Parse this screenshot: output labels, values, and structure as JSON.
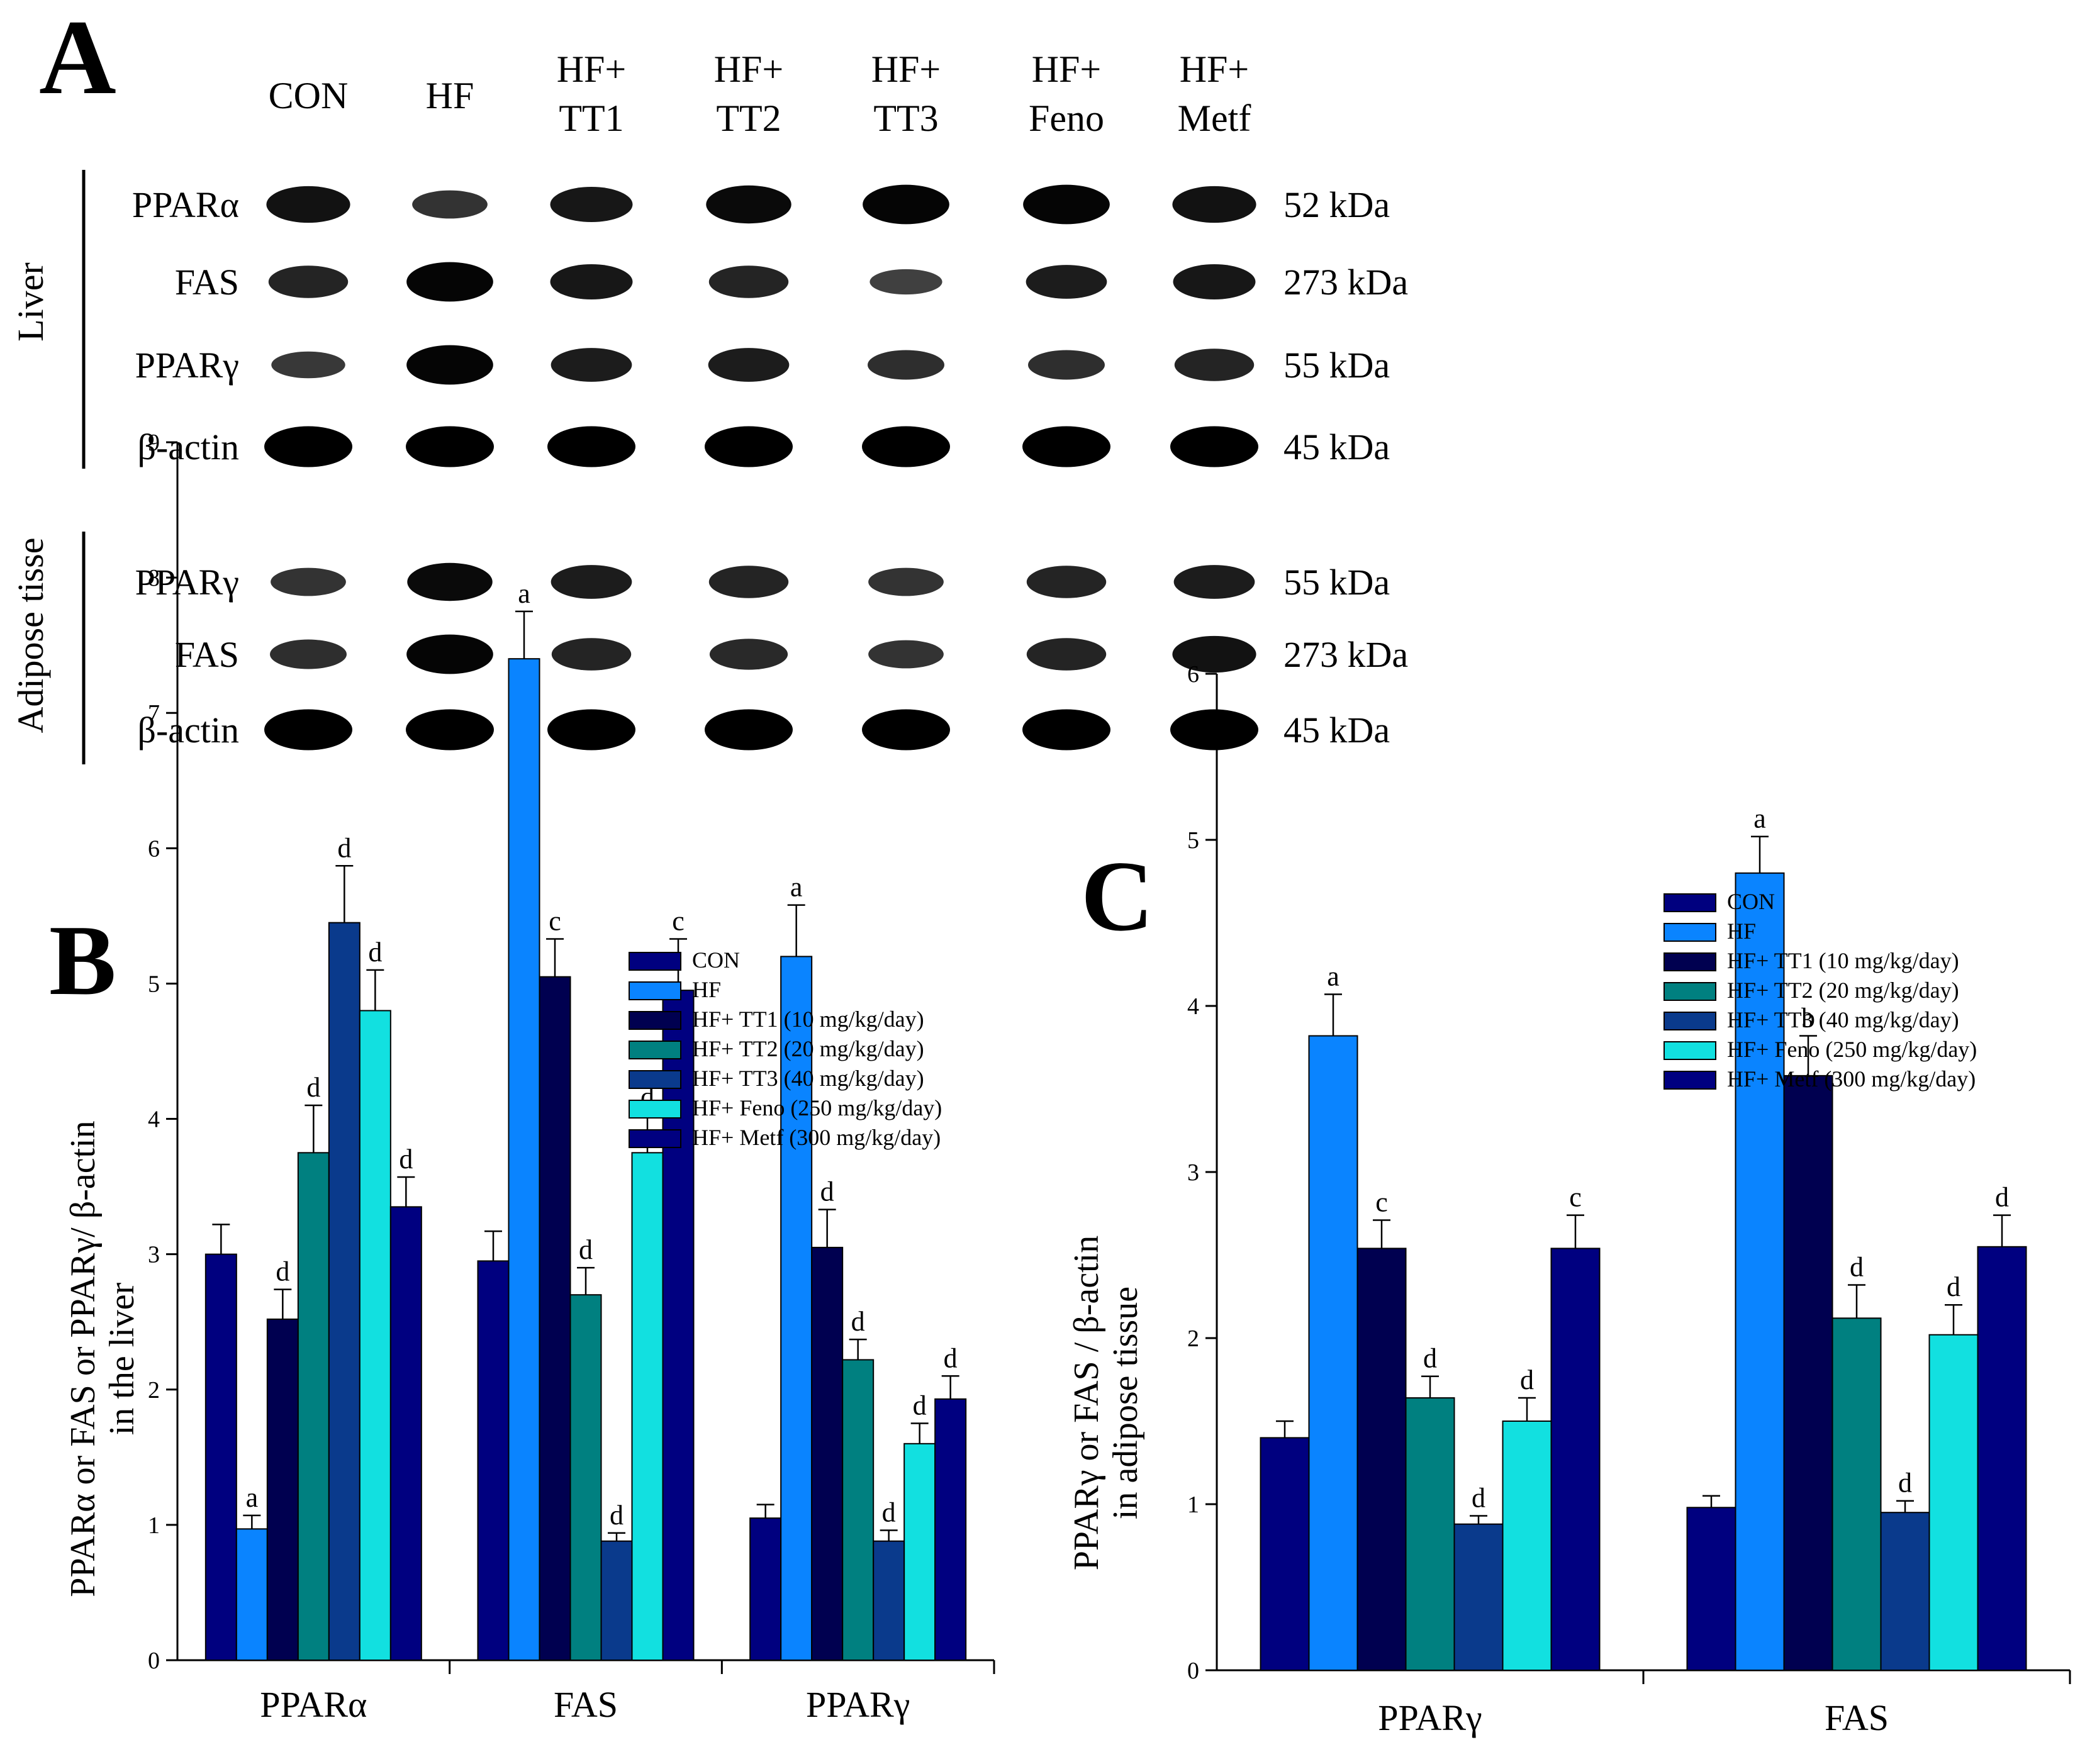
{
  "panel_a": {
    "letter": "A",
    "lanes": [
      [
        "CON"
      ],
      [
        "HF"
      ],
      [
        "HF+",
        "TT1"
      ],
      [
        "HF+",
        "TT2"
      ],
      [
        "HF+",
        "TT3"
      ],
      [
        "HF+",
        "Feno"
      ],
      [
        "HF+",
        "Metf"
      ]
    ],
    "groups": [
      {
        "tissue": "Liver",
        "rows": [
          {
            "protein": "PPARα",
            "size": "52 kDa",
            "band_intensity": [
              0.85,
              0.55,
              0.8,
              0.9,
              0.95,
              0.95,
              0.85
            ]
          },
          {
            "protein": "FAS",
            "size": "273 kDa",
            "band_intensity": [
              0.7,
              0.95,
              0.8,
              0.7,
              0.45,
              0.75,
              0.8
            ]
          },
          {
            "protein": "PPARγ",
            "size": "55 kDa",
            "band_intensity": [
              0.5,
              0.95,
              0.75,
              0.75,
              0.6,
              0.6,
              0.7
            ]
          },
          {
            "protein": "β-actin",
            "size": "45 kDa",
            "band_intensity": [
              1,
              1,
              1,
              1,
              1,
              1,
              1
            ]
          }
        ]
      },
      {
        "tissue": "Adipose tisse",
        "rows": [
          {
            "protein": "PPARγ",
            "size": "55 kDa",
            "band_intensity": [
              0.55,
              0.9,
              0.75,
              0.7,
              0.55,
              0.7,
              0.75
            ]
          },
          {
            "protein": "FAS",
            "size": "273 kDa",
            "band_intensity": [
              0.6,
              0.95,
              0.7,
              0.65,
              0.55,
              0.7,
              0.85
            ]
          },
          {
            "protein": "β-actin",
            "size": "45 kDa",
            "band_intensity": [
              1,
              1,
              1,
              1,
              1,
              1,
              1
            ]
          }
        ]
      }
    ]
  },
  "chart_data": [
    {
      "panel": "B",
      "type": "bar",
      "title": "",
      "xlabel": "",
      "ylabel": [
        "PPARα  or FAS or PPARγ/ β-actin",
        "in the liver"
      ],
      "ylim": [
        0,
        9
      ],
      "yticks": [
        0,
        1,
        2,
        3,
        4,
        5,
        6,
        7,
        8,
        9
      ],
      "categories": [
        "PPARα",
        "FAS",
        "PPARγ"
      ],
      "legend_position": "top-right",
      "series": [
        {
          "name": "CON",
          "color": "#00007f",
          "values": [
            3.0,
            2.95,
            1.05
          ],
          "errors": [
            0.22,
            0.22,
            0.1
          ],
          "labels": [
            "",
            "",
            ""
          ]
        },
        {
          "name": "HF",
          "color": "#0a84ff",
          "values": [
            0.97,
            7.4,
            5.2
          ],
          "errors": [
            0.1,
            0.35,
            0.38
          ],
          "labels": [
            "a",
            "a",
            "a"
          ]
        },
        {
          "name": "HF+ TT1 (10 mg/kg/day)",
          "color": "#000050",
          "values": [
            2.52,
            5.05,
            3.05
          ],
          "errors": [
            0.22,
            0.28,
            0.28
          ],
          "labels": [
            "d",
            "c",
            "d"
          ]
        },
        {
          "name": "HF+ TT2 (20 mg/kg/day)",
          "color": "#008080",
          "values": [
            3.75,
            2.7,
            2.22
          ],
          "errors": [
            0.35,
            0.2,
            0.15
          ],
          "labels": [
            "d",
            "d",
            "d"
          ]
        },
        {
          "name": "HF+ TT3 (40 mg/kg/day)",
          "color": "#0a3a8c",
          "values": [
            5.45,
            0.88,
            0.88
          ],
          "errors": [
            0.42,
            0.06,
            0.08
          ],
          "labels": [
            "d",
            "d",
            "d"
          ]
        },
        {
          "name": "HF+ Feno (250 mg/kg/day)",
          "color": "#12e0e0",
          "values": [
            4.8,
            3.75,
            1.6
          ],
          "errors": [
            0.3,
            0.28,
            0.15
          ],
          "labels": [
            "d",
            "d",
            "d"
          ]
        },
        {
          "name": "HF+ Metf (300 mg/kg/day)",
          "color": "#000080",
          "values": [
            3.35,
            4.95,
            1.93
          ],
          "errors": [
            0.22,
            0.38,
            0.17
          ],
          "labels": [
            "d",
            "c",
            "d"
          ]
        }
      ]
    },
    {
      "panel": "C",
      "type": "bar",
      "title": "",
      "xlabel": "",
      "ylabel": [
        "PPARγ or FAS / β-actin",
        "in adipose tissue"
      ],
      "ylim": [
        0,
        6
      ],
      "yticks": [
        0,
        1,
        2,
        3,
        4,
        5,
        6
      ],
      "categories": [
        "PPARγ",
        "FAS"
      ],
      "legend_position": "top-right",
      "series": [
        {
          "name": "CON",
          "color": "#00007f",
          "values": [
            1.4,
            0.98
          ],
          "errors": [
            0.1,
            0.07
          ],
          "labels": [
            "",
            ""
          ]
        },
        {
          "name": "HF",
          "color": "#0a84ff",
          "values": [
            3.82,
            4.8
          ],
          "errors": [
            0.25,
            0.22
          ],
          "labels": [
            "a",
            "a"
          ]
        },
        {
          "name": "HF+ TT1 (10 mg/kg/day)",
          "color": "#000050",
          "values": [
            2.54,
            3.58
          ],
          "errors": [
            0.17,
            0.24
          ],
          "labels": [
            "c",
            "b"
          ]
        },
        {
          "name": "HF+ TT2 (20 mg/kg/day)",
          "color": "#008080",
          "values": [
            1.64,
            2.12
          ],
          "errors": [
            0.13,
            0.2
          ],
          "labels": [
            "d",
            "d"
          ]
        },
        {
          "name": "HF+ TT3 (40 mg/kg/day)",
          "color": "#0a3a8c",
          "values": [
            0.88,
            0.95
          ],
          "errors": [
            0.05,
            0.07
          ],
          "labels": [
            "d",
            "d"
          ]
        },
        {
          "name": "HF+ Feno (250 mg/kg/day)",
          "color": "#12e0e0",
          "values": [
            1.5,
            2.02
          ],
          "errors": [
            0.14,
            0.18
          ],
          "labels": [
            "d",
            "d"
          ]
        },
        {
          "name": "HF+ Metf (300 mg/kg/day)",
          "color": "#000080",
          "values": [
            2.54,
            2.55
          ],
          "errors": [
            0.2,
            0.19
          ],
          "labels": [
            "c",
            "d"
          ]
        }
      ]
    }
  ]
}
